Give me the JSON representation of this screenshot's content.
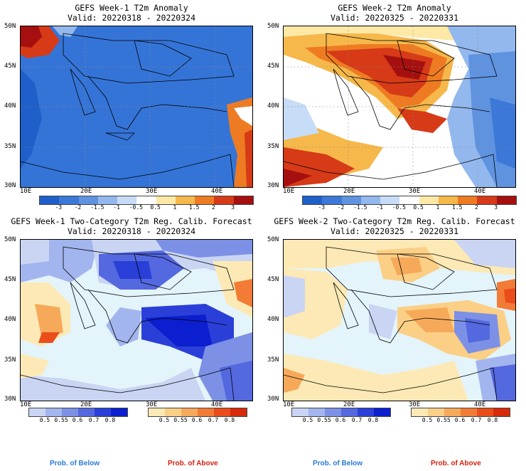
{
  "panels": [
    {
      "title": "GEFS Week-1 T2m Anomaly",
      "valid": "Valid: 20220318 - 20220324"
    },
    {
      "title": "GEFS Week-2 T2m Anomaly",
      "valid": "Valid: 20220325 - 20220331"
    },
    {
      "title": "GEFS Week-1 Two-Category T2m Reg. Calib. Forecast",
      "valid": "Valid: 20220318 - 20220324"
    },
    {
      "title": "GEFS Week-2 Two-Category T2m Reg. Calib. Forecast",
      "valid": "Valid: 20220325 - 20220331"
    }
  ],
  "axes": {
    "lat_labels": [
      "50N",
      "45N",
      "40N",
      "35N",
      "30N"
    ],
    "lon_labels": [
      "10E",
      "20E",
      "30E",
      "40E"
    ]
  },
  "anomaly_colorbar": {
    "labels": [
      "-3",
      "-2",
      "-1.5",
      "-1",
      "-0.5",
      "0.5",
      "1",
      "1.5",
      "2",
      "3"
    ],
    "colors": [
      "#1f5fc9",
      "#3b78d8",
      "#5f93e0",
      "#93b8ee",
      "#c7dcf6",
      "#ffffff",
      "#fde8a6",
      "#f6b84a",
      "#ee7b22",
      "#d63a17",
      "#a50f0f"
    ]
  },
  "prob_colorbar": {
    "below_labels": [
      "0.5",
      "0.55",
      "0.6",
      "0.7",
      "0.8"
    ],
    "above_labels": [
      "0.5",
      "0.55",
      "0.6",
      "0.7",
      "0.8"
    ],
    "below_colors": [
      "#c9d5f3",
      "#a3b5ee",
      "#7c91e6",
      "#5468e0",
      "#2a3fd8",
      "#0b1fd0"
    ],
    "above_colors": [
      "#fde9b5",
      "#fbcf86",
      "#f7a95a",
      "#f27c35",
      "#ea4d1a",
      "#d62a0a"
    ],
    "below_caption": "Prob. of Below",
    "above_caption": "Prob. of Above",
    "below_caption_color": "#2a7ad8",
    "above_caption_color": "#d61f0f"
  }
}
